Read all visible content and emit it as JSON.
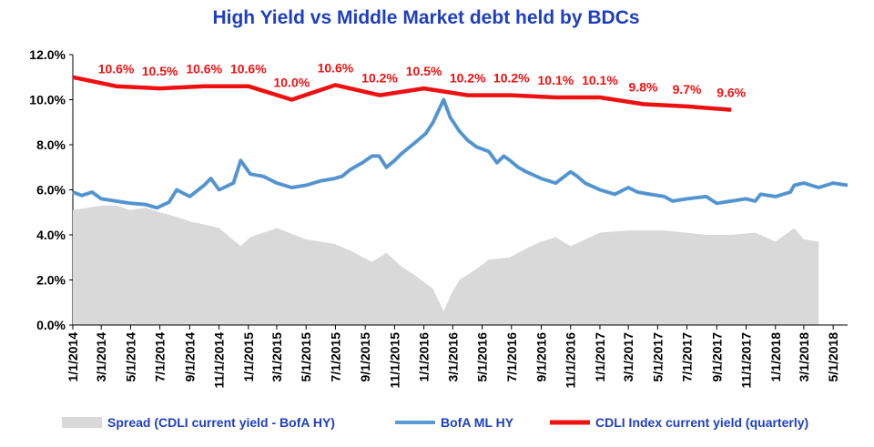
{
  "chart_data": {
    "type": "line",
    "title": "High Yield  vs  Middle Market debt held by BDCs",
    "y_axis": {
      "min": 0,
      "max": 12,
      "ticks": [
        "0.0%",
        "2.0%",
        "4.0%",
        "6.0%",
        "8.0%",
        "10.0%",
        "12.0%"
      ]
    },
    "x_axis": {
      "range": [
        "2014-01-01",
        "2018-05-31"
      ],
      "ticks": [
        "1/1/2014",
        "3/1/2014",
        "5/1/2014",
        "7/1/2014",
        "9/1/2014",
        "11/1/2014",
        "1/1/2015",
        "3/1/2015",
        "5/1/2015",
        "7/1/2015",
        "9/1/2015",
        "11/1/2015",
        "1/1/2016",
        "3/1/2016",
        "5/1/2016",
        "7/1/2016",
        "9/1/2016",
        "11/1/2016",
        "1/1/2017",
        "3/1/2017",
        "5/1/2017",
        "7/1/2017",
        "9/1/2017",
        "11/1/2017",
        "1/1/2018",
        "3/1/2018",
        "5/1/2018"
      ]
    },
    "colors": {
      "spread": "#d9d9d9",
      "hy": "#5b9bd5",
      "cdli": "#ee1111",
      "title": "#1f3fbf"
    },
    "series": [
      {
        "name": "CDLI Index current yield (quarterly)",
        "type": "line",
        "x": [
          "2014-01-01",
          "2014-04-01",
          "2014-07-01",
          "2014-10-01",
          "2015-01-01",
          "2015-04-01",
          "2015-07-01",
          "2015-10-01",
          "2016-01-01",
          "2016-04-01",
          "2016-07-01",
          "2016-10-01",
          "2017-01-01",
          "2017-04-01",
          "2017-07-01",
          "2017-10-01"
        ],
        "y": [
          11.0,
          10.6,
          10.5,
          10.6,
          10.6,
          10.0,
          10.65,
          10.2,
          10.5,
          10.2,
          10.2,
          10.1,
          10.1,
          9.8,
          9.7,
          9.55
        ],
        "labels": [
          "10.6%",
          "10.5%",
          "10.6%",
          "10.6%",
          "10.0%",
          "10.6%",
          "10.2%",
          "10.5%",
          "10.2%",
          "10.2%",
          "10.1%",
          "10.1%",
          "9.8%",
          "9.7%",
          "9.6%"
        ]
      },
      {
        "name": "BofA ML HY",
        "type": "line",
        "x": [
          "2014-01-01",
          "2014-01-20",
          "2014-02-10",
          "2014-03-01",
          "2014-04-01",
          "2014-05-01",
          "2014-06-01",
          "2014-06-25",
          "2014-07-20",
          "2014-08-05",
          "2014-09-01",
          "2014-10-01",
          "2014-10-15",
          "2014-11-01",
          "2014-12-01",
          "2014-12-16",
          "2015-01-05",
          "2015-02-01",
          "2015-03-01",
          "2015-04-01",
          "2015-05-01",
          "2015-06-01",
          "2015-06-29",
          "2015-07-15",
          "2015-08-01",
          "2015-08-26",
          "2015-09-15",
          "2015-09-30",
          "2015-10-15",
          "2015-11-01",
          "2015-11-15",
          "2015-12-14",
          "2016-01-05",
          "2016-01-20",
          "2016-02-11",
          "2016-02-25",
          "2016-03-15",
          "2016-04-01",
          "2016-04-20",
          "2016-05-15",
          "2016-06-01",
          "2016-06-15",
          "2016-06-28",
          "2016-07-15",
          "2016-08-01",
          "2016-09-01",
          "2016-10-01",
          "2016-11-01",
          "2016-11-15",
          "2016-12-01",
          "2017-01-01",
          "2017-02-01",
          "2017-03-01",
          "2017-03-20",
          "2017-04-15",
          "2017-05-15",
          "2017-06-01",
          "2017-07-01",
          "2017-08-10",
          "2017-09-01",
          "2017-10-01",
          "2017-11-01",
          "2017-11-20",
          "2017-12-01",
          "2018-01-01",
          "2018-02-01",
          "2018-02-09",
          "2018-03-01",
          "2018-04-01",
          "2018-05-01",
          "2018-05-31"
        ],
        "y": [
          5.9,
          5.75,
          5.9,
          5.6,
          5.5,
          5.4,
          5.35,
          5.2,
          5.45,
          6.0,
          5.7,
          6.2,
          6.5,
          6.0,
          6.3,
          7.3,
          6.7,
          6.6,
          6.3,
          6.1,
          6.2,
          6.4,
          6.5,
          6.6,
          6.9,
          7.2,
          7.5,
          7.5,
          7.0,
          7.3,
          7.6,
          8.1,
          8.5,
          9.0,
          10.0,
          9.2,
          8.6,
          8.2,
          7.9,
          7.7,
          7.2,
          7.5,
          7.3,
          7.0,
          6.8,
          6.5,
          6.3,
          6.8,
          6.6,
          6.3,
          6.0,
          5.8,
          6.1,
          5.9,
          5.8,
          5.7,
          5.5,
          5.6,
          5.7,
          5.4,
          5.5,
          5.6,
          5.5,
          5.8,
          5.7,
          5.9,
          6.2,
          6.3,
          6.1,
          6.3,
          6.2
        ]
      },
      {
        "name": "Spread (CDLI current yield - BofA HY)",
        "type": "area",
        "x": [
          "2014-01-01",
          "2014-03-01",
          "2014-04-01",
          "2014-05-01",
          "2014-06-01",
          "2014-07-01",
          "2014-08-05",
          "2014-09-01",
          "2014-10-15",
          "2014-11-01",
          "2014-12-16",
          "2015-01-05",
          "2015-03-01",
          "2015-05-01",
          "2015-06-29",
          "2015-08-01",
          "2015-09-15",
          "2015-10-15",
          "2015-11-15",
          "2015-12-14",
          "2016-01-20",
          "2016-02-11",
          "2016-02-25",
          "2016-03-15",
          "2016-04-20",
          "2016-05-15",
          "2016-06-28",
          "2016-08-01",
          "2016-09-01",
          "2016-10-01",
          "2016-11-01",
          "2017-01-01",
          "2017-03-01",
          "2017-05-15",
          "2017-08-10",
          "2017-10-01",
          "2017-11-20",
          "2018-01-01",
          "2018-02-09",
          "2018-03-01",
          "2018-03-31",
          "2018-04-01"
        ],
        "y": [
          5.1,
          5.3,
          5.3,
          5.1,
          5.2,
          5.0,
          4.8,
          4.6,
          4.4,
          4.3,
          3.5,
          3.9,
          4.3,
          3.8,
          3.6,
          3.3,
          2.8,
          3.2,
          2.6,
          2.2,
          1.6,
          0.6,
          1.3,
          2.0,
          2.5,
          2.9,
          3.0,
          3.4,
          3.7,
          3.9,
          3.5,
          4.1,
          4.2,
          4.2,
          4.0,
          4.0,
          4.1,
          3.7,
          4.3,
          3.8,
          3.7,
          3.8
        ]
      }
    ],
    "legend": {
      "position": "bottom",
      "items": [
        {
          "label": "Spread (CDLI current yield - BofA HY)",
          "key": "spread"
        },
        {
          "label": "BofA ML HY",
          "key": "hy"
        },
        {
          "label": "CDLI Index current yield (quarterly)",
          "key": "cdli"
        }
      ]
    }
  }
}
